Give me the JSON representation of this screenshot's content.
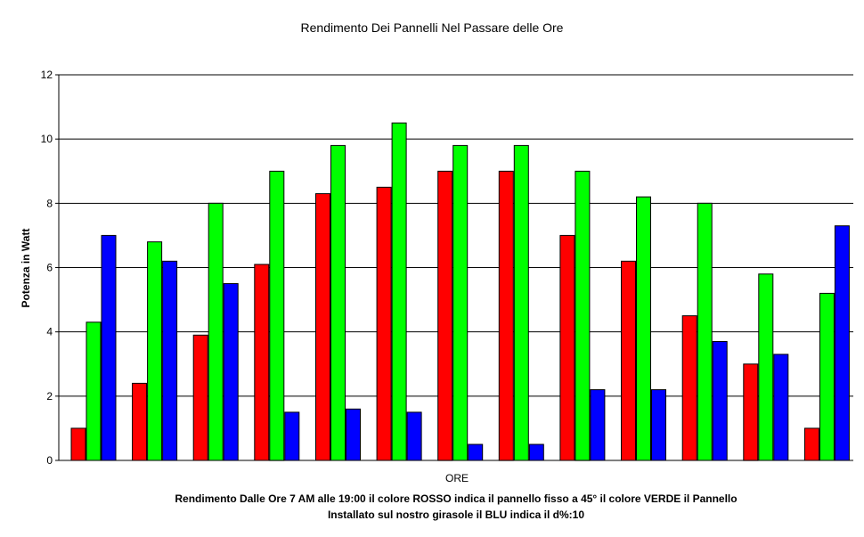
{
  "chart_data": {
    "type": "bar",
    "title": "Rendimento Dei Pannelli Nel Passare delle Ore",
    "xlabel": "ORE",
    "ylabel": "Potenza in Watt",
    "caption_line1": "Rendimento Dalle Ore 7 AM alle 19:00 il colore ROSSO indica il pannello fisso a 45° il colore VERDE il Pannello",
    "caption_line2": "Installato sul nostro girasole il BLU indica il d%:10",
    "ylim": [
      0,
      12
    ],
    "yticks": [
      "0",
      "2",
      "4",
      "6",
      "8",
      "10",
      "12"
    ],
    "grid": true,
    "legend": "none",
    "categories": [
      "",
      "",
      "",
      "",
      "",
      "",
      "",
      "",
      "",
      "",
      "",
      "",
      ""
    ],
    "series": [
      {
        "color": "#ff0000",
        "values": [
          1,
          2.4,
          3.9,
          6.1,
          8.3,
          8.5,
          9,
          9,
          7,
          6.2,
          4.5,
          3,
          1
        ]
      },
      {
        "color": "#00ff00",
        "values": [
          4.3,
          6.8,
          8,
          9,
          9.8,
          10.5,
          9.8,
          9.8,
          9,
          8.2,
          8,
          5.8,
          5.2
        ]
      },
      {
        "color": "#0000ff",
        "values": [
          7,
          6.2,
          5.5,
          1.5,
          1.6,
          1.5,
          0.5,
          0.5,
          2.2,
          2.2,
          3.7,
          3.3,
          7.3
        ]
      }
    ]
  }
}
